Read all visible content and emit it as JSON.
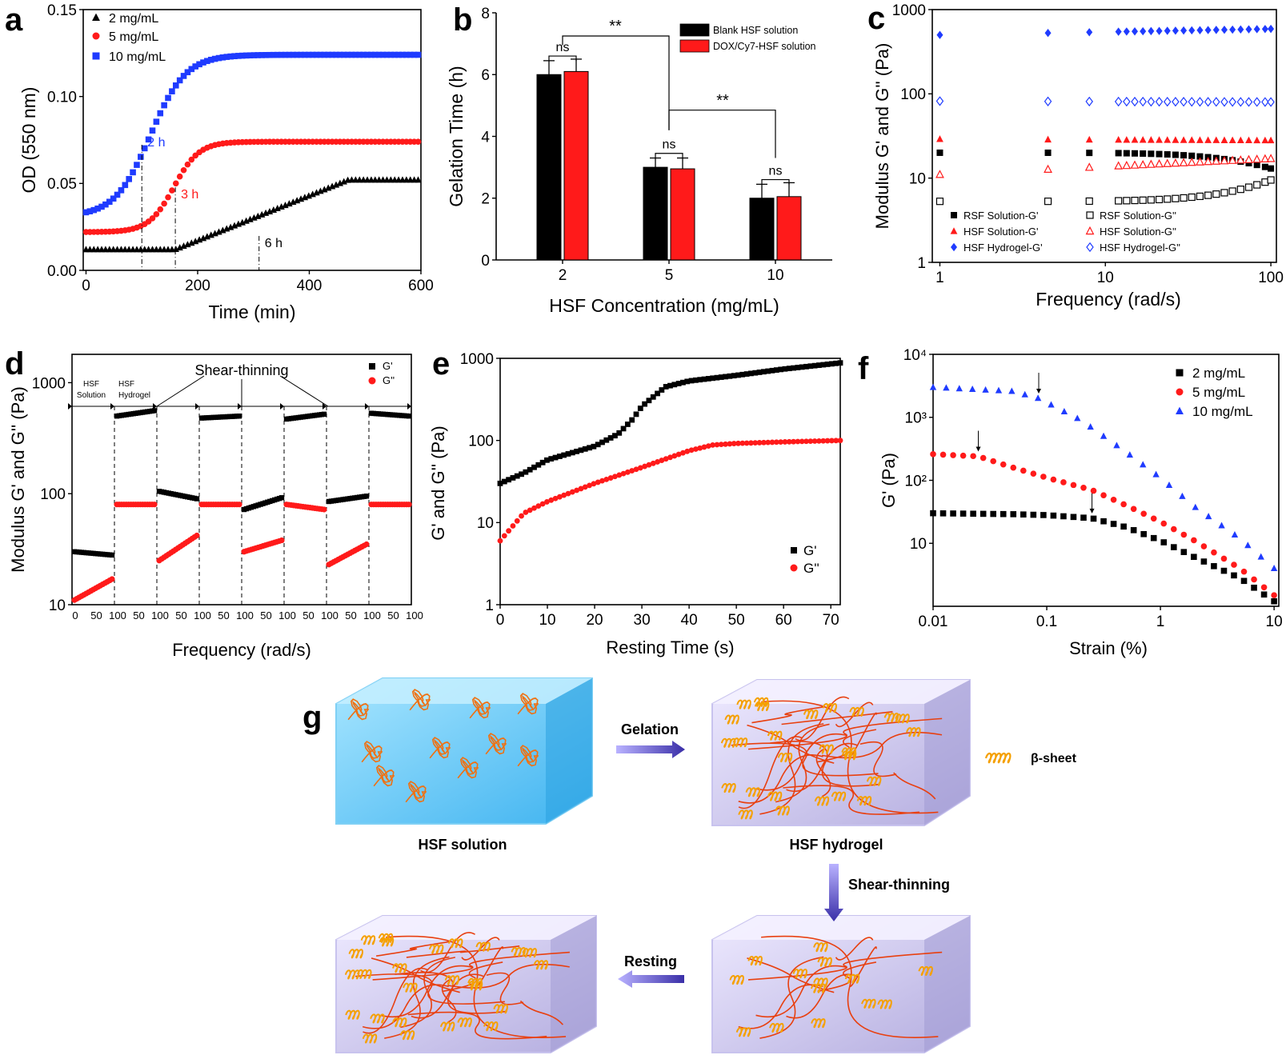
{
  "colors": {
    "black": "#000000",
    "red": "#ff1a1a",
    "blue": "#1f3bff",
    "arrow": "#3a2fa8"
  },
  "chart_data": [
    {
      "panel": "a",
      "type": "scatter",
      "xlabel": "Time (min)",
      "ylabel": "OD (550 nm)",
      "xlim": [
        0,
        600
      ],
      "ylim": [
        0,
        0.15
      ],
      "xticks": [
        "0",
        "200",
        "400",
        "600"
      ],
      "yticks": [
        "0.00",
        "0.05",
        "0.10",
        "0.15"
      ],
      "series": [
        {
          "name": "2 mg/mL",
          "color": "#000000",
          "marker": "triangle",
          "onset": 160,
          "plateau": 470,
          "start": 0.012,
          "end": 0.052
        },
        {
          "name": "5 mg/mL",
          "color": "#ff1a1a",
          "marker": "circle",
          "onset": 90,
          "plateau": 225,
          "start": 0.022,
          "end": 0.074
        },
        {
          "name": "10 mg/mL",
          "color": "#1f3bff",
          "marker": "square",
          "onset": 20,
          "plateau": 210,
          "start": 0.031,
          "end": 0.124
        }
      ],
      "annotations": [
        {
          "text": "2 h",
          "x": 100,
          "y": 0.075,
          "color": "#1f3bff"
        },
        {
          "text": "3 h",
          "x": 160,
          "y": 0.045,
          "color": "#ff1a1a"
        },
        {
          "text": "6 h",
          "x": 310,
          "y": 0.017,
          "color": "#000000"
        }
      ]
    },
    {
      "panel": "b",
      "type": "bar",
      "xlabel": "HSF Concentration (mg/mL)",
      "ylabel": "Gelation Time (h)",
      "ylim": [
        0,
        8
      ],
      "yticks": [
        "0",
        "2",
        "4",
        "6",
        "8"
      ],
      "categories": [
        "2",
        "5",
        "10"
      ],
      "series": [
        {
          "name": "Blank HSF solution",
          "color": "#000000",
          "values": [
            6.0,
            3.0,
            2.0
          ],
          "errors": [
            0.45,
            0.3,
            0.45
          ]
        },
        {
          "name": "DOX/Cy7-HSF solution",
          "color": "#ff1a1a",
          "values": [
            6.1,
            2.95,
            2.05
          ],
          "errors": [
            0.4,
            0.35,
            0.45
          ]
        }
      ],
      "significance": [
        {
          "text": "ns",
          "pair": "2"
        },
        {
          "text": "ns",
          "pair": "5"
        },
        {
          "text": "ns",
          "pair": "10"
        },
        {
          "text": "**",
          "from": "2",
          "to": "5"
        },
        {
          "text": "**",
          "from": "5",
          "to": "10"
        }
      ]
    },
    {
      "panel": "c",
      "type": "scatter",
      "scale": "log-log",
      "xlabel": "Frequency (rad/s)",
      "ylabel": "Modulus G' and G'' (Pa)",
      "xlim": [
        1,
        100
      ],
      "ylim": [
        1,
        1000
      ],
      "xticks": [
        "1",
        "10",
        "100"
      ],
      "yticks": [
        "1",
        "10",
        "100",
        "1000"
      ],
      "series": [
        {
          "name": "RSF Solution-G'",
          "color": "#000000",
          "marker": "square",
          "fill": true,
          "start": 20,
          "end": 13,
          "late_change": true
        },
        {
          "name": "RSF Solution-G''",
          "color": "#000000",
          "marker": "square",
          "fill": false,
          "start": 5.3,
          "end": 9.5,
          "late_change": true
        },
        {
          "name": "HSF Solution-G'",
          "color": "#ff1a1a",
          "marker": "triangle",
          "fill": true,
          "start": 29,
          "end": 28
        },
        {
          "name": "HSF Solution-G''",
          "color": "#ff1a1a",
          "marker": "triangle",
          "fill": false,
          "start": 11,
          "end": 17
        },
        {
          "name": "HSF Hydrogel-G'",
          "color": "#1f3bff",
          "marker": "diamond",
          "fill": true,
          "start": 500,
          "end": 590
        },
        {
          "name": "HSF Hydrogel-G''",
          "color": "#1f3bff",
          "marker": "diamond",
          "fill": false,
          "start": 82,
          "end": 80
        }
      ]
    },
    {
      "panel": "d",
      "type": "scatter",
      "scale": "log-y",
      "xlabel": "Frequency (rad/s)",
      "ylabel": "Modulus G' and G'' (Pa)",
      "ylim": [
        10,
        2000
      ],
      "yticks": [
        "10",
        "100",
        "1000"
      ],
      "xtick_labels": [
        "0",
        "50",
        "100",
        "50",
        "100",
        "50",
        "100",
        "50",
        "100",
        "50",
        "100",
        "50",
        "100",
        "50",
        "100",
        "50",
        "100"
      ],
      "title": "Shear-thinning",
      "state_labels": [
        "HSF Solution",
        "HSF Hydrogel"
      ],
      "segments": [
        {
          "gp": [
            30,
            28
          ],
          "gpp": [
            11,
            17
          ]
        },
        {
          "gp": [
            500,
            560
          ],
          "gpp": [
            80,
            80
          ]
        },
        {
          "gp": [
            105,
            90
          ],
          "gpp": [
            25,
            42
          ]
        },
        {
          "gp": [
            480,
            500
          ],
          "gpp": [
            80,
            80
          ]
        },
        {
          "gp": [
            72,
            92
          ],
          "gpp": [
            30,
            38
          ]
        },
        {
          "gp": [
            470,
            520
          ],
          "gpp": [
            80,
            72
          ]
        },
        {
          "gp": [
            85,
            95
          ],
          "gpp": [
            23,
            35
          ]
        },
        {
          "gp": [
            530,
            500
          ],
          "gpp": [
            80,
            80
          ]
        }
      ],
      "series": [
        {
          "name": "G'",
          "color": "#000000"
        },
        {
          "name": "G''",
          "color": "#ff1a1a"
        }
      ]
    },
    {
      "panel": "e",
      "type": "scatter",
      "scale": "log-y",
      "xlabel": "Resting Time (s)",
      "ylabel": "G' and G'' (Pa)",
      "xlim": [
        0,
        72
      ],
      "ylim": [
        1,
        1000
      ],
      "xticks": [
        "0",
        "10",
        "20",
        "30",
        "40",
        "50",
        "60",
        "70"
      ],
      "yticks": [
        "1",
        "10",
        "100",
        "1000"
      ],
      "series": [
        {
          "name": "G'",
          "color": "#000000",
          "points": [
            [
              0,
              30
            ],
            [
              5,
              40
            ],
            [
              10,
              58
            ],
            [
              20,
              85
            ],
            [
              25,
              120
            ],
            [
              28,
              180
            ],
            [
              30,
              260
            ],
            [
              35,
              450
            ],
            [
              40,
              530
            ],
            [
              50,
              620
            ],
            [
              60,
              740
            ],
            [
              72,
              880
            ]
          ]
        },
        {
          "name": "G''",
          "color": "#ff1a1a",
          "points": [
            [
              0,
              6
            ],
            [
              5,
              13
            ],
            [
              10,
              18
            ],
            [
              20,
              30
            ],
            [
              30,
              47
            ],
            [
              40,
              75
            ],
            [
              45,
              88
            ],
            [
              50,
              92
            ],
            [
              60,
              96
            ],
            [
              72,
              100
            ]
          ]
        }
      ]
    },
    {
      "panel": "f",
      "type": "scatter",
      "scale": "log-log",
      "xlabel": "Strain (%)",
      "ylabel": "G' (Pa)",
      "xlim": [
        0.01,
        10
      ],
      "ylim": [
        1,
        10000
      ],
      "xticks": [
        "0.01",
        "0.1",
        "1",
        "10"
      ],
      "yticks": [
        "10",
        "10²",
        "10³",
        "10⁴"
      ],
      "series": [
        {
          "name": "2 mg/mL",
          "color": "#000000",
          "marker": "square",
          "points": [
            [
              0.01,
              30
            ],
            [
              0.05,
              29
            ],
            [
              0.1,
              28
            ],
            [
              0.25,
              25
            ],
            [
              0.5,
              18
            ],
            [
              1,
              11
            ],
            [
              2,
              6
            ],
            [
              5,
              2.8
            ],
            [
              10,
              1.2
            ]
          ],
          "arrow_x": 0.25
        },
        {
          "name": "5 mg/mL",
          "color": "#ff1a1a",
          "marker": "circle",
          "points": [
            [
              0.01,
              260
            ],
            [
              0.025,
              240
            ],
            [
              0.05,
              160
            ],
            [
              0.1,
              110
            ],
            [
              0.25,
              70
            ],
            [
              0.5,
              40
            ],
            [
              1,
              22
            ],
            [
              2,
              11
            ],
            [
              5,
              4
            ],
            [
              10,
              1.5
            ]
          ],
          "arrow_x": 0.025
        },
        {
          "name": "10 mg/mL",
          "color": "#1f3bff",
          "marker": "triangle",
          "points": [
            [
              0.01,
              3000
            ],
            [
              0.05,
              2600
            ],
            [
              0.085,
              2000
            ],
            [
              0.2,
              900
            ],
            [
              0.5,
              280
            ],
            [
              1,
              110
            ],
            [
              2,
              38
            ],
            [
              5,
              12
            ],
            [
              10,
              4
            ]
          ],
          "arrow_x": 0.085
        }
      ]
    }
  ],
  "panel_letters": [
    "a",
    "b",
    "c",
    "d",
    "e",
    "f",
    "g"
  ],
  "schematic": {
    "states": [
      "HSF solution",
      "HSF hydrogel"
    ],
    "steps": [
      "Gelation",
      "Shear-thinning",
      "Resting"
    ],
    "legend": "β-sheet"
  }
}
